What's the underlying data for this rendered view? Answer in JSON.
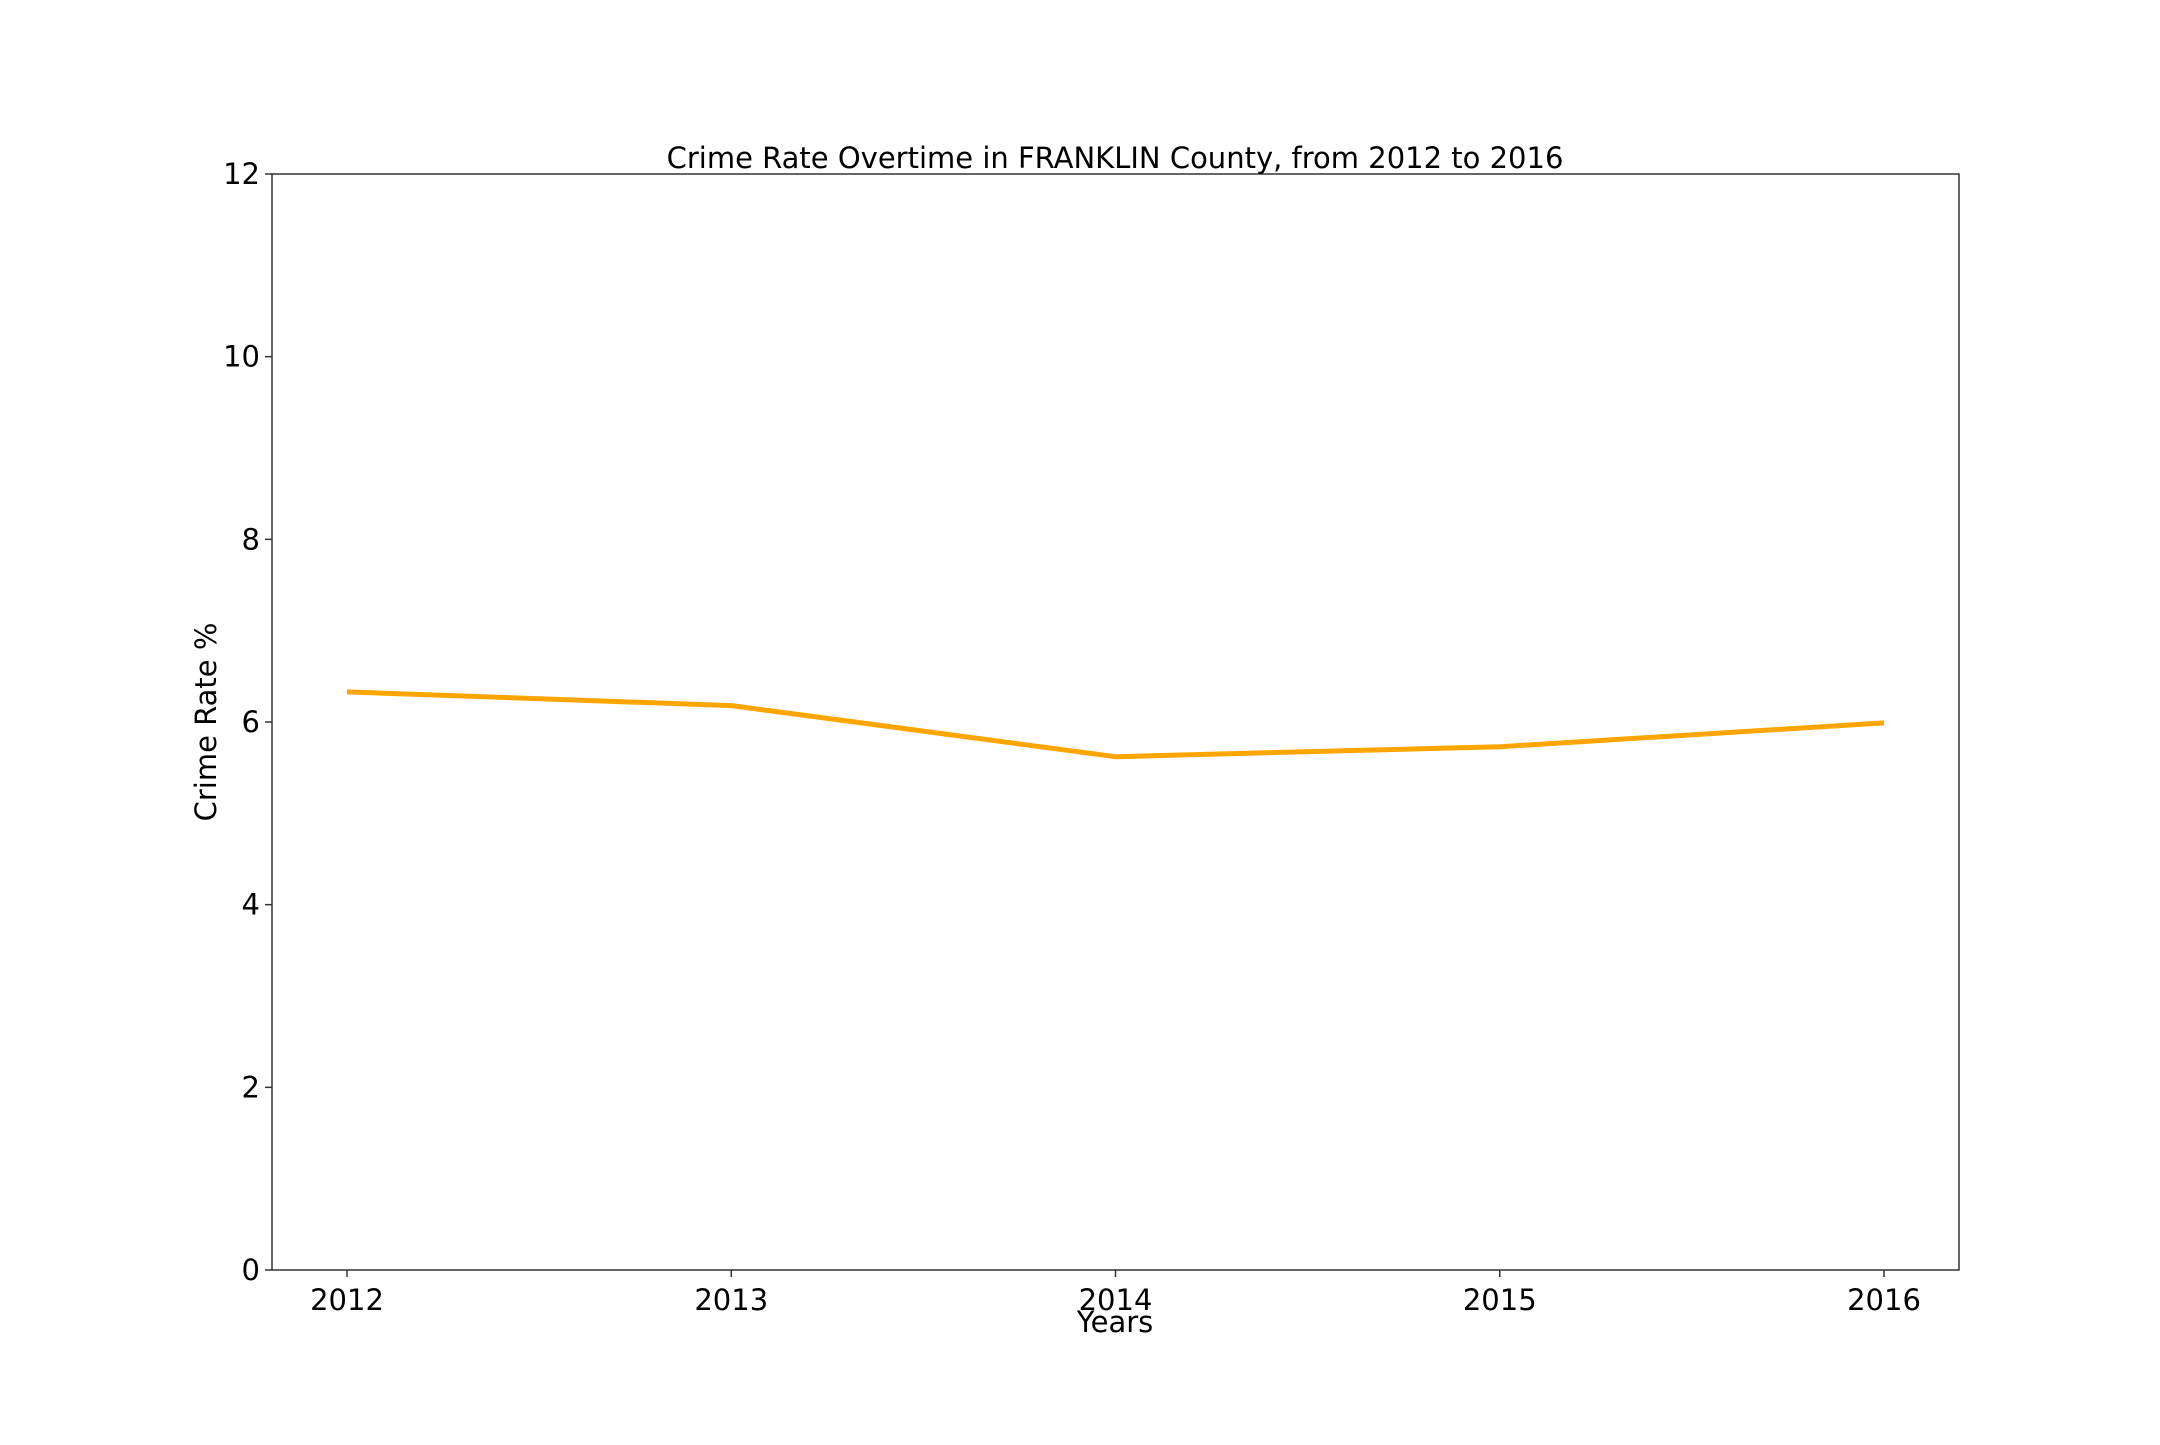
{
  "chart_data": {
    "type": "line",
    "title": "Crime Rate Overtime in FRANKLIN County, from 2012 to 2016",
    "xlabel": "Years",
    "ylabel": "Crime Rate %",
    "x": [
      "2012",
      "2013",
      "2014",
      "2015",
      "2016"
    ],
    "series": [
      {
        "values": [
          6.33,
          6.18,
          5.62,
          5.73,
          5.99
        ],
        "color": "#FFA500"
      }
    ],
    "ylim": [
      0,
      12
    ],
    "yticks": [
      0,
      2,
      4,
      6,
      8,
      10,
      12
    ],
    "grid": false,
    "legend": "none"
  }
}
